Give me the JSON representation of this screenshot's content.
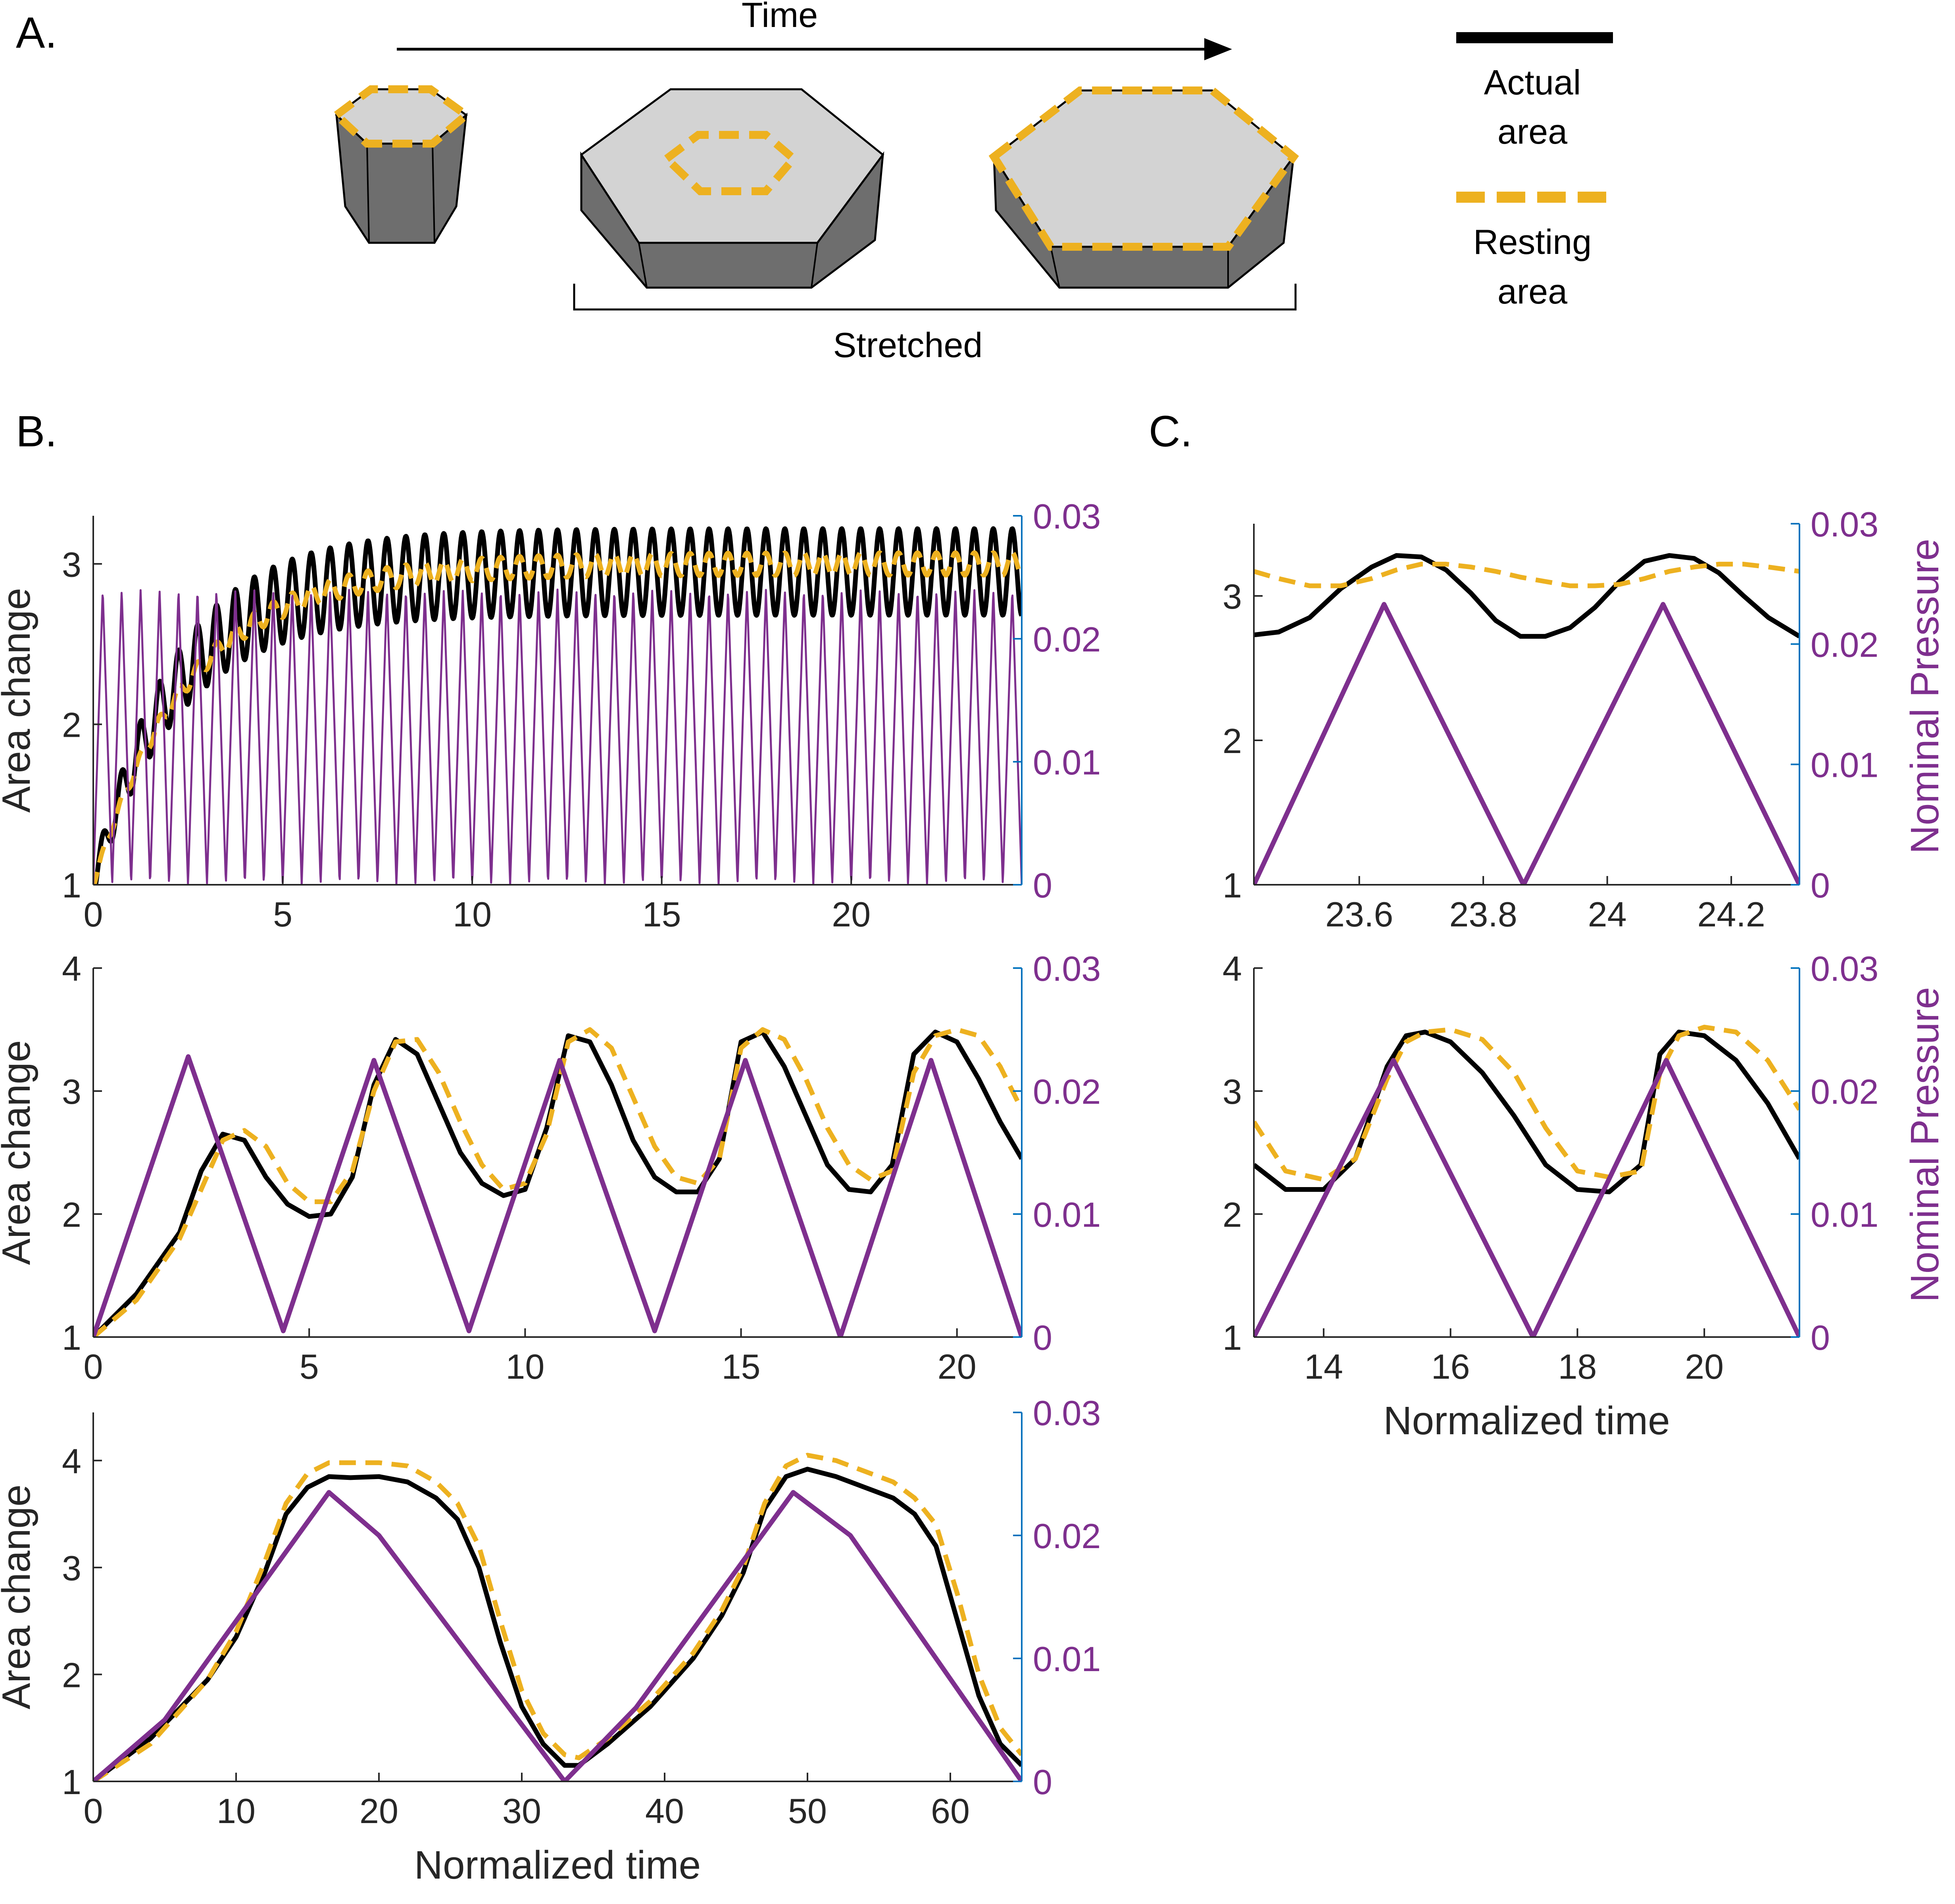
{
  "panel_labels": {
    "a": "A.",
    "b": "B.",
    "c": "C."
  },
  "schematic": {
    "time_label": "Time",
    "stretched_label": "Stretched",
    "legend": [
      {
        "line1": "Actual",
        "line2": "area",
        "style": "solid",
        "color": "#000000"
      },
      {
        "line1": "Resting",
        "line2": "area",
        "style": "dashed",
        "color": "#EDB120"
      }
    ]
  },
  "colors": {
    "actual": "#000000",
    "resting": "#EDB120",
    "pressure": "#7E2F8E",
    "right_axis_ticks": "#0072BD",
    "cell_top": "#d3d3d3",
    "cell_side": "#6e6e6e"
  },
  "chart_data": [
    {
      "id": "b1",
      "type": "line",
      "ylabel": "Area change",
      "xlabel": "",
      "y2label": "",
      "xlim": [
        0,
        24.5
      ],
      "ylim": [
        1,
        3.3
      ],
      "y2lim": [
        0,
        0.03
      ],
      "xticks": [
        "0",
        "5",
        "10",
        "15",
        "20"
      ],
      "xtick_values": [
        0,
        5,
        10,
        15,
        20
      ],
      "yticks": [
        "1",
        "2",
        "3"
      ],
      "ytick_values": [
        1,
        2,
        3
      ],
      "y2ticks": [
        "0",
        "0.01",
        "0.02",
        "0.03"
      ],
      "y2tick_values": [
        0,
        0.01,
        0.02,
        0.03
      ],
      "pressure": {
        "period": 0.5,
        "peak": 0.024,
        "phase": 0,
        "line_width": "thin"
      },
      "actual": {
        "model": "ramp_oscillation",
        "start": 1.0,
        "plateau": 2.95,
        "ramp_time": 6.5,
        "amplitude": 0.27,
        "period": 0.5
      },
      "resting": {
        "model": "ramp_oscillation",
        "start": 1.0,
        "plateau": 3.0,
        "ramp_time": 7.5,
        "amplitude": 0.07,
        "period": 0.5
      }
    },
    {
      "id": "b2",
      "type": "line",
      "ylabel": "Area change",
      "xlabel": "",
      "y2label": "",
      "xlim": [
        0,
        21.5
      ],
      "ylim": [
        1,
        4
      ],
      "y2lim": [
        0,
        0.03
      ],
      "xticks": [
        "0",
        "5",
        "10",
        "15",
        "20"
      ],
      "xtick_values": [
        0,
        5,
        10,
        15,
        20
      ],
      "yticks": [
        "1",
        "2",
        "3",
        "4"
      ],
      "ytick_values": [
        1,
        2,
        3,
        4
      ],
      "y2ticks": [
        "0",
        "0.01",
        "0.02",
        "0.03"
      ],
      "y2tick_values": [
        0,
        0.01,
        0.02,
        0.03
      ],
      "pressure": {
        "x": [
          0,
          2.2,
          4.4,
          6.5,
          8.7,
          10.8,
          13.0,
          15.1,
          17.3,
          19.4,
          21.5
        ],
        "y": [
          0,
          0.0228,
          0.0005,
          0.0225,
          0.0005,
          0.0225,
          0.0005,
          0.0225,
          0,
          0.0225,
          0
        ]
      },
      "actual": {
        "x": [
          0,
          1,
          2,
          2.5,
          3,
          3.5,
          4,
          4.5,
          5,
          5.5,
          6,
          6.5,
          7,
          7.5,
          8,
          8.5,
          9,
          9.5,
          10,
          10.5,
          11,
          11.5,
          12,
          12.5,
          13,
          13.5,
          14,
          14.5,
          15,
          15.5,
          16,
          16.5,
          17,
          17.5,
          18,
          18.5,
          19,
          19.5,
          20,
          20.5,
          21,
          21.5
        ],
        "y": [
          1.0,
          1.35,
          1.85,
          2.35,
          2.65,
          2.6,
          2.3,
          2.08,
          1.98,
          2.0,
          2.3,
          3.05,
          3.42,
          3.3,
          2.9,
          2.5,
          2.25,
          2.15,
          2.2,
          2.7,
          3.45,
          3.4,
          3.05,
          2.6,
          2.3,
          2.18,
          2.18,
          2.45,
          3.4,
          3.48,
          3.2,
          2.8,
          2.4,
          2.2,
          2.18,
          2.4,
          3.3,
          3.48,
          3.4,
          3.1,
          2.75,
          2.45
        ]
      },
      "resting": {
        "x": [
          0,
          1,
          2,
          2.5,
          3,
          3.5,
          4,
          4.5,
          5,
          5.5,
          6,
          6.5,
          7,
          7.5,
          8,
          8.5,
          9,
          9.5,
          10,
          10.5,
          11,
          11.5,
          12,
          12.5,
          13,
          13.5,
          14,
          14.5,
          15,
          15.5,
          16,
          16.5,
          17,
          17.5,
          18,
          18.5,
          19,
          19.5,
          20,
          20.5,
          21,
          21.5
        ],
        "y": [
          1.0,
          1.3,
          1.8,
          2.2,
          2.6,
          2.68,
          2.55,
          2.25,
          2.1,
          2.1,
          2.35,
          3.0,
          3.4,
          3.42,
          3.15,
          2.75,
          2.4,
          2.2,
          2.25,
          2.65,
          3.4,
          3.5,
          3.35,
          2.95,
          2.55,
          2.3,
          2.25,
          2.45,
          3.35,
          3.5,
          3.42,
          3.1,
          2.7,
          2.4,
          2.28,
          2.35,
          3.15,
          3.45,
          3.5,
          3.45,
          3.2,
          2.85
        ]
      }
    },
    {
      "id": "b3",
      "type": "line",
      "ylabel": "Area change",
      "xlabel": "Normalized time",
      "y2label": "",
      "xlim": [
        0,
        65
      ],
      "ylim": [
        1,
        4.45
      ],
      "y2lim": [
        0,
        0.03
      ],
      "xticks": [
        "0",
        "10",
        "20",
        "30",
        "40",
        "50",
        "60"
      ],
      "xtick_values": [
        0,
        10,
        20,
        30,
        40,
        50,
        60
      ],
      "yticks": [
        "1",
        "2",
        "3",
        "4"
      ],
      "ytick_values": [
        1,
        2,
        3,
        4
      ],
      "y2ticks": [
        "0",
        "0.01",
        "0.02",
        "0.03"
      ],
      "y2tick_values": [
        0,
        0.01,
        0.02,
        0.03
      ],
      "pressure": {
        "x": [
          0,
          5,
          16.5,
          20,
          33,
          38,
          49,
          53,
          65
        ],
        "y": [
          0,
          0.005,
          0.0235,
          0.02,
          0,
          0.006,
          0.0235,
          0.02,
          0
        ]
      },
      "actual": {
        "x": [
          0,
          4,
          8,
          10,
          12,
          13.5,
          15,
          16.5,
          18,
          20,
          22,
          24,
          25.5,
          27,
          28.5,
          30,
          31.5,
          33,
          34,
          36,
          39,
          42,
          44,
          45.5,
          47,
          48.5,
          50,
          52,
          54,
          56,
          57.5,
          59,
          60.5,
          62,
          63.5,
          65
        ],
        "y": [
          1.0,
          1.4,
          1.95,
          2.35,
          2.95,
          3.5,
          3.75,
          3.85,
          3.84,
          3.85,
          3.8,
          3.65,
          3.45,
          3.0,
          2.3,
          1.7,
          1.35,
          1.15,
          1.15,
          1.35,
          1.7,
          2.15,
          2.55,
          2.95,
          3.55,
          3.85,
          3.92,
          3.85,
          3.75,
          3.65,
          3.5,
          3.2,
          2.5,
          1.8,
          1.35,
          1.15
        ]
      },
      "resting": {
        "x": [
          0,
          4,
          8,
          10,
          12,
          13.5,
          15,
          16.5,
          18,
          20,
          22,
          24,
          25.5,
          27,
          28.5,
          30,
          31.5,
          33,
          34,
          36,
          39,
          42,
          44,
          45.5,
          47,
          48.5,
          50,
          52,
          54,
          56,
          57.5,
          59,
          60.5,
          62,
          63.5,
          65
        ],
        "y": [
          1.0,
          1.35,
          1.95,
          2.4,
          3.05,
          3.6,
          3.88,
          3.98,
          3.98,
          3.98,
          3.95,
          3.8,
          3.6,
          3.2,
          2.5,
          1.85,
          1.45,
          1.25,
          1.22,
          1.4,
          1.75,
          2.2,
          2.6,
          3.0,
          3.6,
          3.95,
          4.05,
          4.0,
          3.9,
          3.8,
          3.65,
          3.4,
          2.75,
          2.0,
          1.5,
          1.25
        ]
      }
    },
    {
      "id": "c1",
      "type": "line",
      "ylabel": "",
      "xlabel": "",
      "y2label": "Nominal Pressure",
      "xlim": [
        23.43,
        24.31
      ],
      "ylim": [
        1,
        3.5
      ],
      "y2lim": [
        0,
        0.03
      ],
      "xticks": [
        "23.6",
        "23.8",
        "24",
        "24.2"
      ],
      "xtick_values": [
        23.6,
        23.8,
        24.0,
        24.2
      ],
      "yticks": [
        "1",
        "2",
        "3"
      ],
      "ytick_values": [
        1,
        2,
        3
      ],
      "y2ticks": [
        "0",
        "0.01",
        "0.02",
        "0.03"
      ],
      "y2tick_values": [
        0,
        0.01,
        0.02,
        0.03
      ],
      "pressure": {
        "x": [
          23.43,
          23.64,
          23.865,
          24.09,
          24.31
        ],
        "y": [
          0,
          0.0233,
          0,
          0.0233,
          0
        ]
      },
      "actual": {
        "x": [
          23.43,
          23.47,
          23.52,
          23.57,
          23.62,
          23.66,
          23.7,
          23.74,
          23.78,
          23.82,
          23.86,
          23.9,
          23.94,
          23.98,
          24.02,
          24.06,
          24.1,
          24.14,
          24.18,
          24.22,
          24.26,
          24.31
        ],
        "y": [
          2.73,
          2.75,
          2.85,
          3.05,
          3.2,
          3.28,
          3.27,
          3.18,
          3.02,
          2.83,
          2.72,
          2.72,
          2.78,
          2.92,
          3.1,
          3.24,
          3.28,
          3.26,
          3.16,
          3.0,
          2.85,
          2.72
        ]
      },
      "resting": {
        "x": [
          23.43,
          23.47,
          23.52,
          23.57,
          23.62,
          23.66,
          23.7,
          23.74,
          23.78,
          23.82,
          23.86,
          23.9,
          23.94,
          23.98,
          24.02,
          24.06,
          24.1,
          24.14,
          24.18,
          24.22,
          24.26,
          24.31
        ],
        "y": [
          3.17,
          3.12,
          3.07,
          3.07,
          3.12,
          3.18,
          3.22,
          3.22,
          3.2,
          3.17,
          3.13,
          3.1,
          3.07,
          3.07,
          3.08,
          3.12,
          3.17,
          3.2,
          3.22,
          3.22,
          3.2,
          3.17
        ]
      }
    },
    {
      "id": "c2",
      "type": "line",
      "ylabel": "",
      "xlabel": "Normalized time",
      "y2label": "Nominal Pressure",
      "xlim": [
        12.9,
        21.5
      ],
      "ylim": [
        1,
        4
      ],
      "y2lim": [
        0,
        0.03
      ],
      "xticks": [
        "14",
        "16",
        "18",
        "20"
      ],
      "xtick_values": [
        14,
        16,
        18,
        20
      ],
      "yticks": [
        "1",
        "2",
        "3",
        "4"
      ],
      "ytick_values": [
        1,
        2,
        3,
        4
      ],
      "y2ticks": [
        "0",
        "0.01",
        "0.02",
        "0.03"
      ],
      "y2tick_values": [
        0,
        0.01,
        0.02,
        0.03
      ],
      "pressure": {
        "x": [
          12.9,
          15.1,
          17.3,
          19.4,
          21.5
        ],
        "y": [
          0,
          0.0225,
          0,
          0.0225,
          0
        ]
      },
      "actual": {
        "x": [
          12.9,
          13.4,
          14.0,
          14.5,
          15.0,
          15.3,
          15.6,
          16.0,
          16.5,
          17.0,
          17.5,
          18.0,
          18.5,
          19.0,
          19.3,
          19.6,
          20.0,
          20.5,
          21.0,
          21.5
        ],
        "y": [
          2.4,
          2.2,
          2.2,
          2.45,
          3.2,
          3.45,
          3.48,
          3.4,
          3.15,
          2.8,
          2.4,
          2.2,
          2.18,
          2.4,
          3.3,
          3.48,
          3.45,
          3.25,
          2.9,
          2.45
        ]
      },
      "resting": {
        "x": [
          12.9,
          13.4,
          14.0,
          14.5,
          15.0,
          15.3,
          15.6,
          16.0,
          16.5,
          17.0,
          17.5,
          18.0,
          18.5,
          19.0,
          19.3,
          19.6,
          20.0,
          20.5,
          21.0,
          21.5
        ],
        "y": [
          2.75,
          2.35,
          2.28,
          2.45,
          3.1,
          3.4,
          3.48,
          3.5,
          3.42,
          3.15,
          2.7,
          2.35,
          2.3,
          2.35,
          3.15,
          3.45,
          3.52,
          3.48,
          3.25,
          2.85
        ]
      }
    }
  ]
}
